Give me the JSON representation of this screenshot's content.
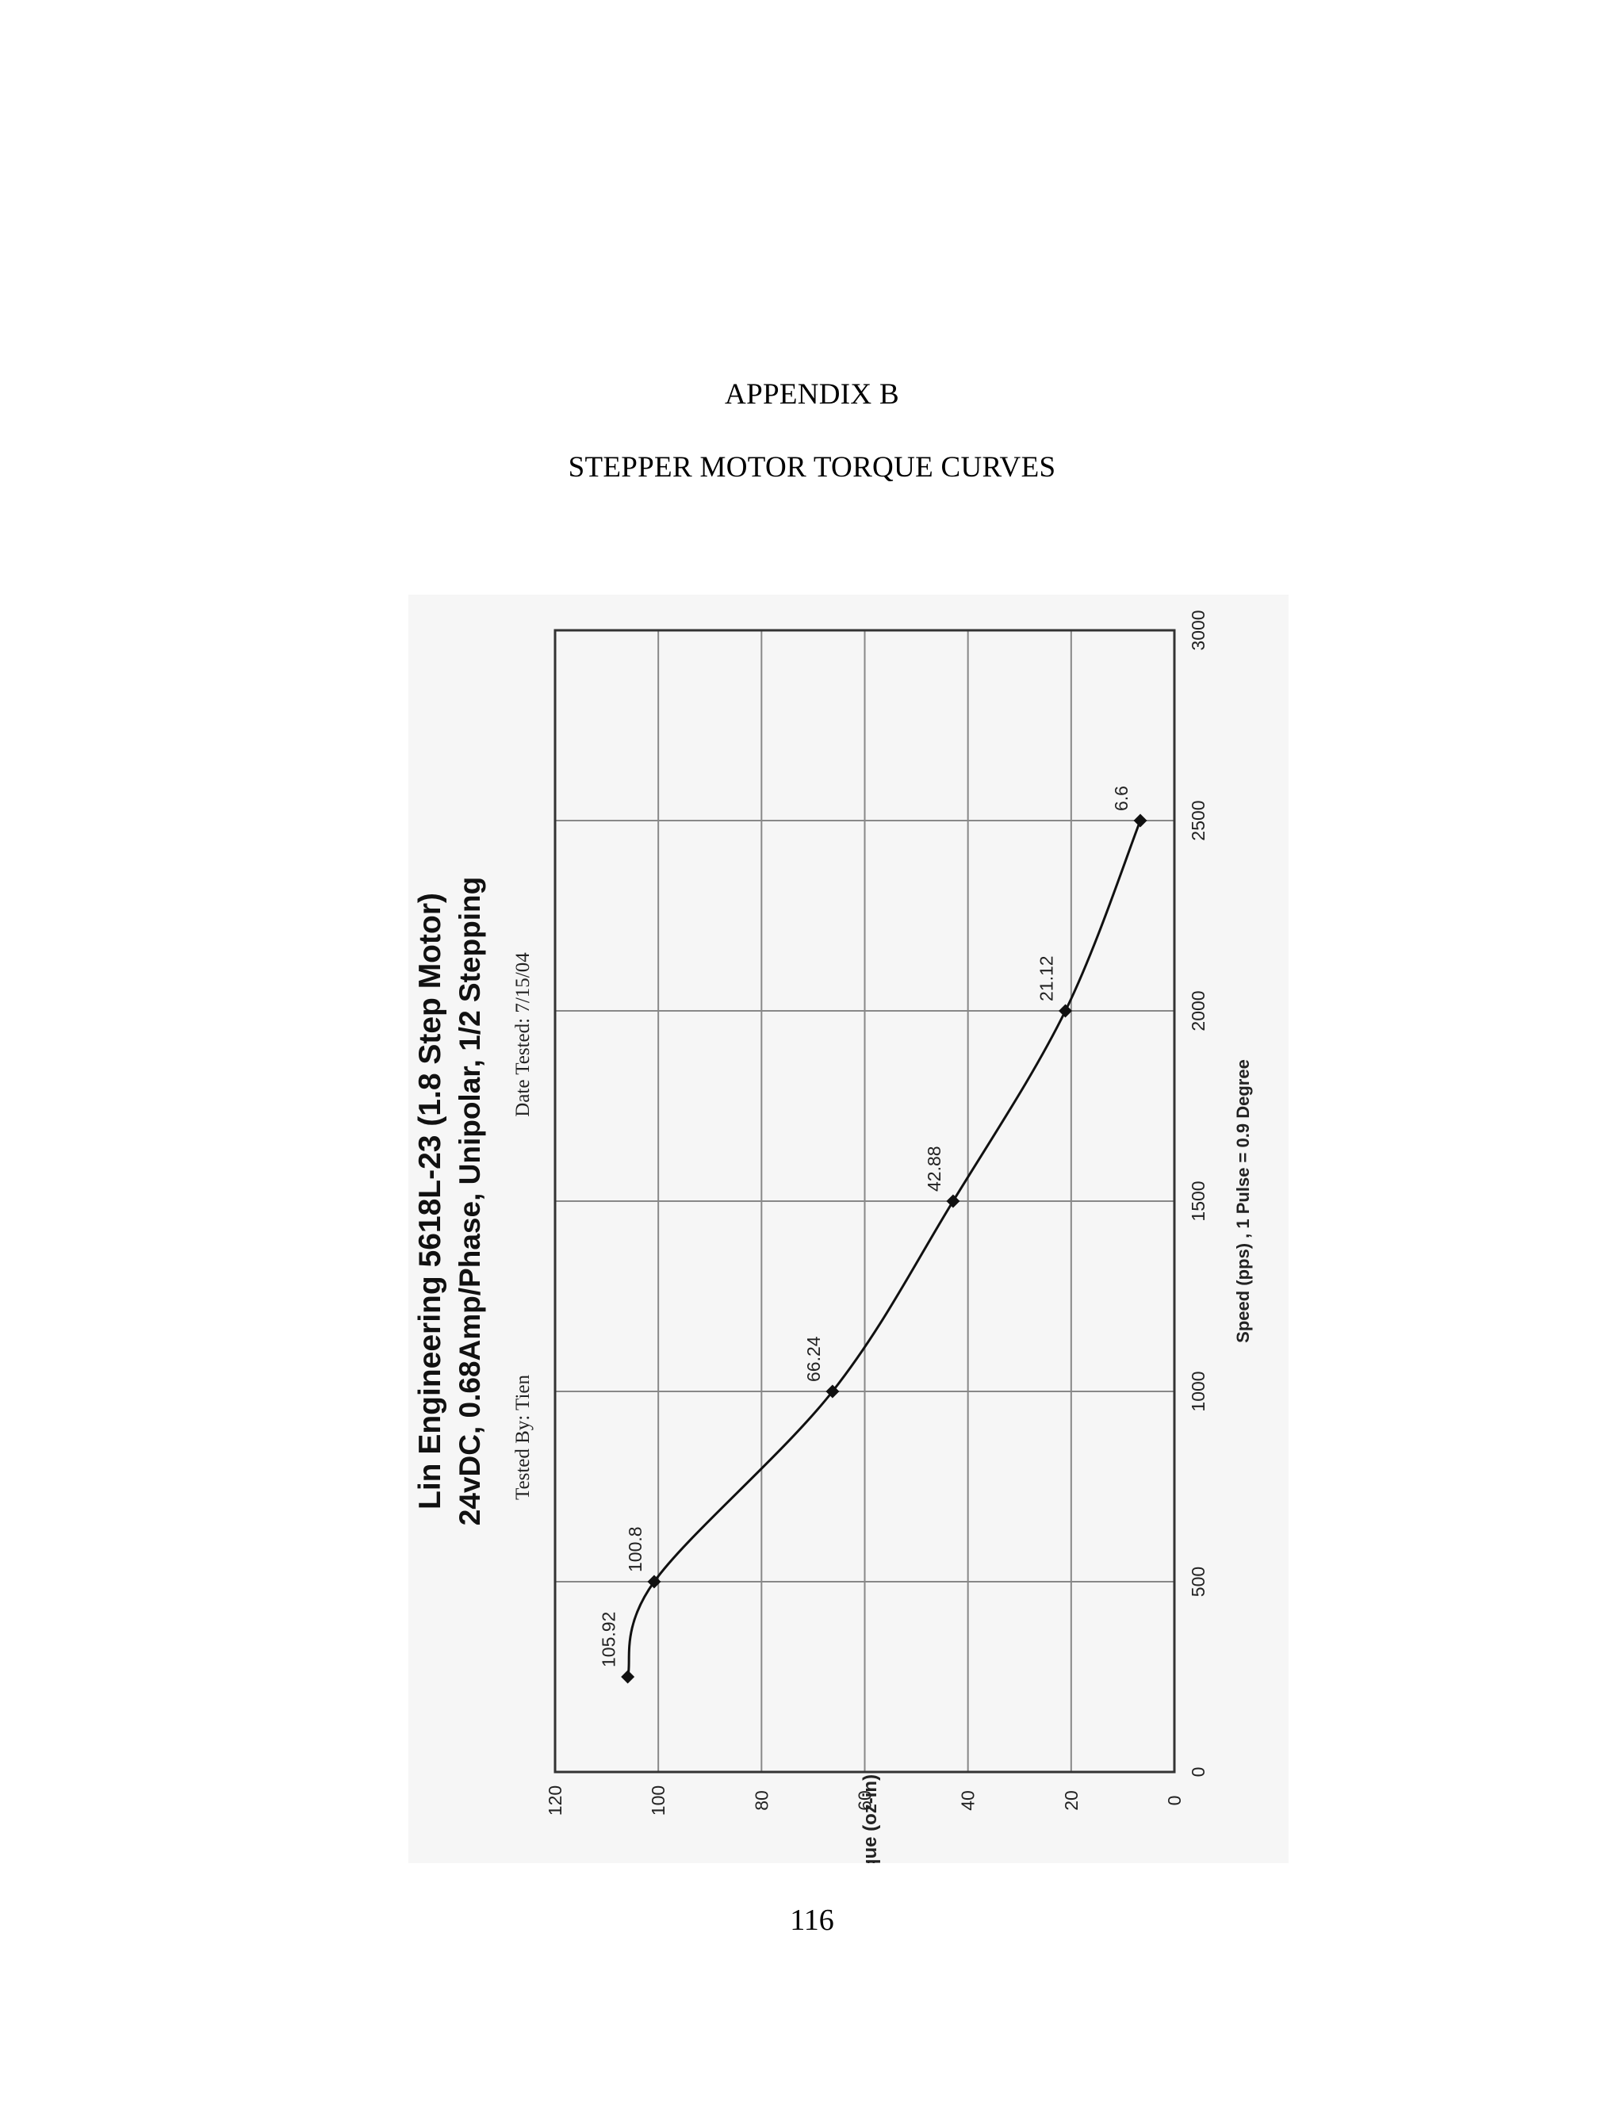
{
  "page": {
    "appendix_title": "APPENDIX B",
    "appendix_subtitle": "STEPPER MOTOR TORQUE CURVES",
    "page_number": "116"
  },
  "chart_data": {
    "type": "line",
    "title": "Lin Engineering 5618L-23 (1.8 Step Motor)",
    "subtitle": "24vDC, 0.68Amp/Phase, Unipolar, 1/2 Stepping",
    "tested_by": "Tested By:  Tien",
    "date_tested": "Date Tested:  7/15/04",
    "xlabel": "Speed (pps) , 1 Pulse = 0.9 Degree",
    "ylabel": "Torque (oz-in)",
    "xlim": [
      0,
      3000
    ],
    "ylim": [
      0,
      120
    ],
    "x_ticks": [
      0,
      500,
      1000,
      1500,
      2000,
      2500,
      3000
    ],
    "y_ticks": [
      0,
      20,
      40,
      60,
      80,
      100,
      120
    ],
    "grid": true,
    "rotation": "rotated 90 degrees counter-clockwise on page",
    "series": [
      {
        "x": [
          250,
          500,
          1000,
          1500,
          2000,
          2500
        ],
        "y": [
          105.92,
          100.8,
          66.24,
          42.88,
          21.12,
          6.6
        ],
        "data_labels": [
          "105.92",
          "100.8",
          "66.24",
          "42.88",
          "21.12",
          "6.6"
        ]
      }
    ],
    "colors": {
      "line": "#111111",
      "grid": "#888888",
      "frame": "#333333"
    }
  }
}
